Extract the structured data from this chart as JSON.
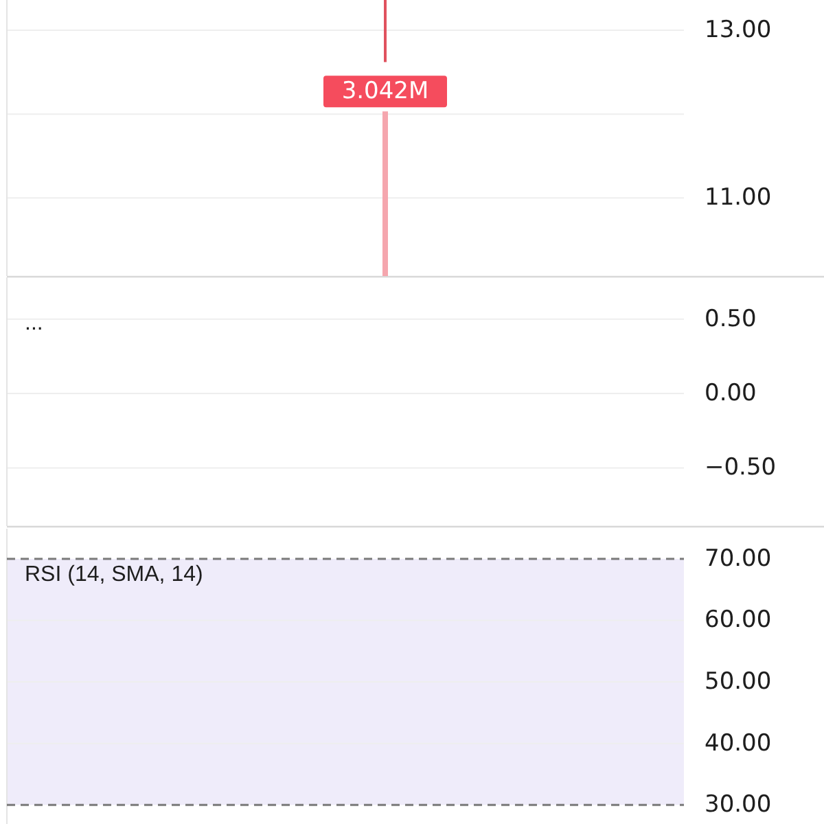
{
  "chart_data": [
    {
      "type": "bar",
      "categories": [
        null,
        null,
        null,
        null,
        null,
        null,
        null,
        null,
        null,
        null,
        null,
        null,
        null,
        null,
        null,
        null,
        null
      ],
      "ylim": [
        10.07,
        13.36
      ],
      "yticks": [
        {
          "value": 13,
          "label": "13.00"
        },
        {
          "value": 12,
          "label": null
        },
        {
          "value": 11,
          "label": "11.00"
        }
      ],
      "y2lim": [
        0,
        5.1
      ],
      "grid": "y",
      "tick_labels": "y",
      "series": [
        {
          "color": "#e0525f",
          "values": [
            null,
            null,
            null,
            null,
            null,
            null,
            null,
            null,
            null,
            -0.74,
            null,
            null,
            null,
            null,
            null,
            null,
            null
          ],
          "base": [
            null,
            null,
            null,
            null,
            null,
            null,
            null,
            null,
            null,
            13.36,
            null,
            null,
            null,
            null,
            null,
            null,
            null
          ]
        },
        {
          "color": "#f5a6ae",
          "axis": "y2",
          "values": [
            null,
            null,
            null,
            null,
            null,
            null,
            null,
            null,
            null,
            3.042,
            null,
            null,
            null,
            null,
            null,
            null,
            null
          ],
          "value_labels": [
            null,
            null,
            null,
            null,
            null,
            null,
            null,
            null,
            null,
            "3.042M",
            null,
            null,
            null,
            null,
            null,
            null,
            null
          ]
        }
      ]
    },
    {
      "type": "line",
      "title": "...",
      "categories": [
        null,
        null,
        null,
        null,
        null,
        null,
        null,
        null,
        null,
        null,
        null,
        null,
        null,
        null,
        null,
        null,
        null
      ],
      "values": [
        null,
        null,
        null,
        null,
        null,
        null,
        null,
        null,
        null,
        null,
        null,
        null,
        null,
        null,
        null,
        null,
        null
      ],
      "ylim": [
        -0.89,
        0.78
      ],
      "yticks": [
        {
          "value": 0.5,
          "label": "0.50"
        },
        {
          "value": 0,
          "label": "0.00"
        },
        {
          "value": -0.5,
          "label": "−0.50"
        }
      ],
      "grid": "y",
      "tick_labels": "y"
    },
    {
      "type": "line",
      "title": "RSI (14, SMA, 14)",
      "categories": [
        null,
        null,
        null,
        null,
        null,
        null,
        null,
        null,
        null,
        null,
        null,
        null,
        null,
        null,
        null,
        null,
        null
      ],
      "values": [
        null,
        null,
        null,
        null,
        null,
        null,
        null,
        null,
        null,
        null,
        null,
        null,
        null,
        null,
        null,
        null,
        null
      ],
      "ylim": [
        26.9,
        74.9
      ],
      "yticks": [
        {
          "value": 70,
          "label": "70.00"
        },
        {
          "value": 60,
          "label": "60.00"
        },
        {
          "value": 50,
          "label": "50.00"
        },
        {
          "value": 40,
          "label": "40.00"
        },
        {
          "value": 30,
          "label": "30.00"
        }
      ],
      "grid": "y",
      "tick_labels": "y",
      "bands": [
        {
          "axis": "y",
          "from": 30,
          "to": 70,
          "color": "#efecfa"
        }
      ],
      "ref_lines": [
        {
          "axis": "y",
          "value": 70,
          "color": "#7a7a7a",
          "line_style": "dashed"
        },
        {
          "axis": "y",
          "value": 30,
          "color": "#7a7a7a",
          "line_style": "dashed"
        }
      ]
    }
  ]
}
